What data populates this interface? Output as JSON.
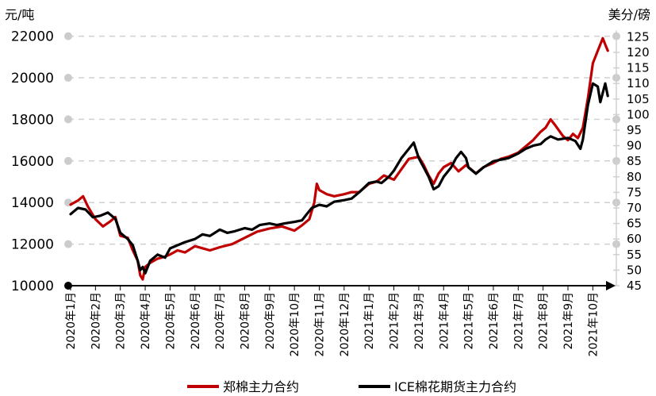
{
  "chart_data": {
    "type": "line",
    "left_unit": "元/吨",
    "right_unit": "美分/磅",
    "left_axis": {
      "ticks": [
        10000,
        12000,
        14000,
        16000,
        18000,
        20000,
        22000
      ],
      "ylim": [
        10000,
        22800
      ]
    },
    "right_axis": {
      "ticks": [
        45,
        50,
        55,
        60,
        65,
        70,
        75,
        80,
        85,
        90,
        95,
        100,
        105,
        110,
        115,
        120,
        125
      ],
      "ylim": [
        45,
        127
      ]
    },
    "categories": [
      "2020年1月",
      "2020年2月",
      "2020年3月",
      "2020年4月",
      "2020年5月",
      "2020年6月",
      "2020年7月",
      "2020年8月",
      "2020年9月",
      "2020年10月",
      "2020年11月",
      "2020年12月",
      "2021年1月",
      "2021年2月",
      "2021年3月",
      "2021年4月",
      "2021年5月",
      "2021年6月",
      "2021年7月",
      "2021年8月",
      "2021年9月",
      "2021年10月"
    ],
    "grid": true,
    "legend_position": "bottom",
    "series": [
      {
        "name": "郑棉主力合约",
        "axis": "left",
        "color": "#c00000",
        "points": [
          [
            0,
            13900
          ],
          [
            0.3,
            14100
          ],
          [
            0.5,
            14300
          ],
          [
            0.7,
            13800
          ],
          [
            1.0,
            13200
          ],
          [
            1.3,
            12850
          ],
          [
            1.6,
            13100
          ],
          [
            1.8,
            13300
          ],
          [
            2.0,
            12400
          ],
          [
            2.3,
            12300
          ],
          [
            2.5,
            11700
          ],
          [
            2.7,
            11200
          ],
          [
            2.8,
            10500
          ],
          [
            2.9,
            10300
          ],
          [
            3.0,
            10900
          ],
          [
            3.2,
            11100
          ],
          [
            3.5,
            11300
          ],
          [
            3.8,
            11400
          ],
          [
            4.0,
            11500
          ],
          [
            4.3,
            11700
          ],
          [
            4.6,
            11600
          ],
          [
            5.0,
            11900
          ],
          [
            5.3,
            11800
          ],
          [
            5.6,
            11700
          ],
          [
            6.0,
            11850
          ],
          [
            6.5,
            12000
          ],
          [
            7.0,
            12300
          ],
          [
            7.5,
            12600
          ],
          [
            8.0,
            12750
          ],
          [
            8.5,
            12850
          ],
          [
            9.0,
            12650
          ],
          [
            9.3,
            12900
          ],
          [
            9.6,
            13200
          ],
          [
            9.8,
            14000
          ],
          [
            9.9,
            14900
          ],
          [
            10.0,
            14600
          ],
          [
            10.3,
            14400
          ],
          [
            10.6,
            14300
          ],
          [
            11.0,
            14400
          ],
          [
            11.3,
            14500
          ],
          [
            11.6,
            14500
          ],
          [
            12.0,
            14900
          ],
          [
            12.3,
            15000
          ],
          [
            12.6,
            15300
          ],
          [
            13.0,
            15100
          ],
          [
            13.3,
            15600
          ],
          [
            13.6,
            16100
          ],
          [
            14.0,
            16200
          ],
          [
            14.2,
            15800
          ],
          [
            14.4,
            15300
          ],
          [
            14.6,
            14900
          ],
          [
            14.8,
            15400
          ],
          [
            15.0,
            15700
          ],
          [
            15.3,
            15900
          ],
          [
            15.6,
            15500
          ],
          [
            15.9,
            15800
          ],
          [
            16.0,
            15700
          ],
          [
            16.3,
            15400
          ],
          [
            16.6,
            15700
          ],
          [
            17.0,
            15900
          ],
          [
            17.3,
            16100
          ],
          [
            17.6,
            16200
          ],
          [
            18.0,
            16400
          ],
          [
            18.3,
            16700
          ],
          [
            18.6,
            17000
          ],
          [
            18.9,
            17400
          ],
          [
            19.1,
            17600
          ],
          [
            19.3,
            18000
          ],
          [
            19.5,
            17700
          ],
          [
            19.8,
            17200
          ],
          [
            20.0,
            17000
          ],
          [
            20.2,
            17300
          ],
          [
            20.4,
            17100
          ],
          [
            20.6,
            17600
          ],
          [
            20.8,
            19000
          ],
          [
            21.0,
            20700
          ],
          [
            21.2,
            21300
          ],
          [
            21.4,
            21900
          ],
          [
            21.5,
            21600
          ],
          [
            21.6,
            21300
          ]
        ]
      },
      {
        "name": "ICE棉花期货主力合约",
        "axis": "right",
        "color": "#000000",
        "points": [
          [
            0,
            68
          ],
          [
            0.3,
            70
          ],
          [
            0.6,
            69.5
          ],
          [
            0.9,
            67
          ],
          [
            1.2,
            67.5
          ],
          [
            1.5,
            68.5
          ],
          [
            1.8,
            66.5
          ],
          [
            2.0,
            62
          ],
          [
            2.3,
            60
          ],
          [
            2.5,
            58
          ],
          [
            2.7,
            53
          ],
          [
            2.8,
            50
          ],
          [
            2.9,
            51
          ],
          [
            3.0,
            49
          ],
          [
            3.2,
            53
          ],
          [
            3.5,
            55
          ],
          [
            3.8,
            54
          ],
          [
            4.0,
            57
          ],
          [
            4.3,
            58
          ],
          [
            4.6,
            59
          ],
          [
            5.0,
            60
          ],
          [
            5.3,
            61.5
          ],
          [
            5.6,
            61
          ],
          [
            6.0,
            63
          ],
          [
            6.3,
            62
          ],
          [
            6.6,
            62.5
          ],
          [
            7.0,
            63.5
          ],
          [
            7.3,
            63
          ],
          [
            7.6,
            64.5
          ],
          [
            8.0,
            65
          ],
          [
            8.3,
            64.5
          ],
          [
            8.6,
            65
          ],
          [
            9.0,
            65.5
          ],
          [
            9.3,
            66
          ],
          [
            9.5,
            68
          ],
          [
            9.7,
            70
          ],
          [
            10.0,
            71
          ],
          [
            10.3,
            70.5
          ],
          [
            10.6,
            72
          ],
          [
            11.0,
            72.5
          ],
          [
            11.3,
            73
          ],
          [
            11.6,
            75
          ],
          [
            12.0,
            78
          ],
          [
            12.3,
            78.5
          ],
          [
            12.5,
            78
          ],
          [
            12.8,
            80
          ],
          [
            13.0,
            82
          ],
          [
            13.3,
            86
          ],
          [
            13.6,
            89
          ],
          [
            13.8,
            91
          ],
          [
            14.0,
            86
          ],
          [
            14.2,
            83
          ],
          [
            14.4,
            80
          ],
          [
            14.6,
            76
          ],
          [
            14.8,
            77
          ],
          [
            15.0,
            80
          ],
          [
            15.3,
            83
          ],
          [
            15.5,
            86
          ],
          [
            15.7,
            88
          ],
          [
            15.9,
            86
          ],
          [
            16.0,
            83
          ],
          [
            16.3,
            81
          ],
          [
            16.6,
            83
          ],
          [
            17.0,
            85
          ],
          [
            17.3,
            85.5
          ],
          [
            17.6,
            86
          ],
          [
            18.0,
            87.5
          ],
          [
            18.3,
            89
          ],
          [
            18.6,
            90
          ],
          [
            18.9,
            90.5
          ],
          [
            19.1,
            92
          ],
          [
            19.3,
            93
          ],
          [
            19.6,
            92
          ],
          [
            20.0,
            92.5
          ],
          [
            20.3,
            91.5
          ],
          [
            20.5,
            89
          ],
          [
            20.6,
            92
          ],
          [
            20.8,
            103
          ],
          [
            21.0,
            110
          ],
          [
            21.2,
            109
          ],
          [
            21.3,
            104
          ],
          [
            21.4,
            107
          ],
          [
            21.5,
            110
          ],
          [
            21.6,
            106
          ]
        ]
      }
    ]
  }
}
